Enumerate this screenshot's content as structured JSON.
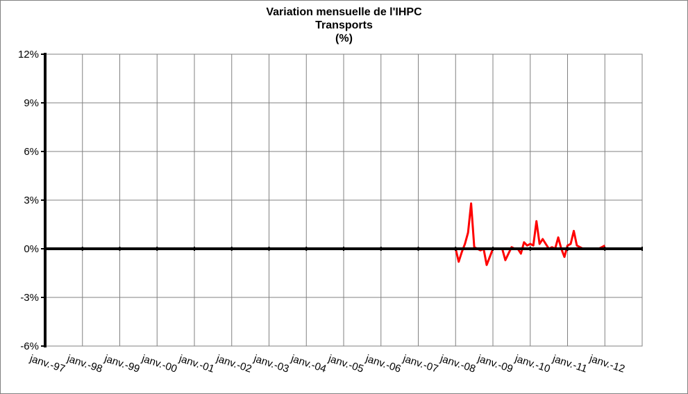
{
  "chart_data": {
    "type": "line",
    "title": "Variation mensuelle de l'IHPC",
    "subtitle": "Transports",
    "unit_label": "(%)",
    "x_tick_labels": [
      "janv.-97",
      "janv.-98",
      "janv.-99",
      "janv.-00",
      "janv.-01",
      "janv.-02",
      "janv.-03",
      "janv.-04",
      "janv.-05",
      "janv.-06",
      "janv.-07",
      "janv.-08",
      "janv.-09",
      "janv.-10",
      "janv.-11",
      "janv.-12"
    ],
    "y_tick_labels": [
      "12%",
      "9%",
      "6%",
      "3%",
      "0%",
      "-3%",
      "-6%"
    ],
    "y_ticks": [
      12,
      9,
      6,
      3,
      0,
      -3,
      -6
    ],
    "ylim": [
      -6,
      12
    ],
    "xlim": [
      "1997-01",
      "2013-01"
    ],
    "grid": true,
    "series": [
      {
        "color": "#ff0000",
        "points": [
          [
            "2005-01",
            0
          ],
          [
            "2005-07",
            0
          ],
          [
            "2006-01",
            0
          ],
          [
            "2006-07",
            0
          ],
          [
            "2007-01",
            0
          ],
          [
            "2007-07",
            0
          ],
          [
            "2008-01",
            0
          ],
          [
            "2008-02",
            -0.8
          ],
          [
            "2008-03",
            -0.2
          ],
          [
            "2008-04",
            0.3
          ],
          [
            "2008-05",
            1.0
          ],
          [
            "2008-06",
            2.8
          ],
          [
            "2008-07",
            0.1
          ],
          [
            "2008-08",
            0.0
          ],
          [
            "2008-09",
            -0.1
          ],
          [
            "2008-10",
            0.0
          ],
          [
            "2008-11",
            -1.0
          ],
          [
            "2008-12",
            -0.5
          ],
          [
            "2009-01",
            0.0
          ],
          [
            "2009-02",
            0.0
          ],
          [
            "2009-03",
            0.0
          ],
          [
            "2009-04",
            0.0
          ],
          [
            "2009-05",
            -0.7
          ],
          [
            "2009-06",
            -0.3
          ],
          [
            "2009-07",
            0.1
          ],
          [
            "2009-08",
            0.0
          ],
          [
            "2009-09",
            0.0
          ],
          [
            "2009-10",
            -0.3
          ],
          [
            "2009-11",
            0.4
          ],
          [
            "2009-12",
            0.2
          ],
          [
            "2010-01",
            0.3
          ],
          [
            "2010-02",
            0.2
          ],
          [
            "2010-03",
            1.7
          ],
          [
            "2010-04",
            0.3
          ],
          [
            "2010-05",
            0.6
          ],
          [
            "2010-06",
            0.3
          ],
          [
            "2010-07",
            0.0
          ],
          [
            "2010-08",
            0.1
          ],
          [
            "2010-09",
            0.0
          ],
          [
            "2010-10",
            0.7
          ],
          [
            "2010-11",
            0.0
          ],
          [
            "2010-12",
            -0.5
          ],
          [
            "2011-01",
            0.2
          ],
          [
            "2011-02",
            0.3
          ],
          [
            "2011-03",
            1.1
          ],
          [
            "2011-04",
            0.2
          ],
          [
            "2011-05",
            0.1
          ],
          [
            "2011-06",
            0.0
          ],
          [
            "2011-07",
            0.0
          ],
          [
            "2011-08",
            0.0
          ],
          [
            "2011-09",
            0.0
          ],
          [
            "2011-10",
            0.0
          ],
          [
            "2011-11",
            0.0
          ],
          [
            "2011-12",
            0.1
          ],
          [
            "2012-01",
            0.2
          ]
        ]
      }
    ]
  }
}
